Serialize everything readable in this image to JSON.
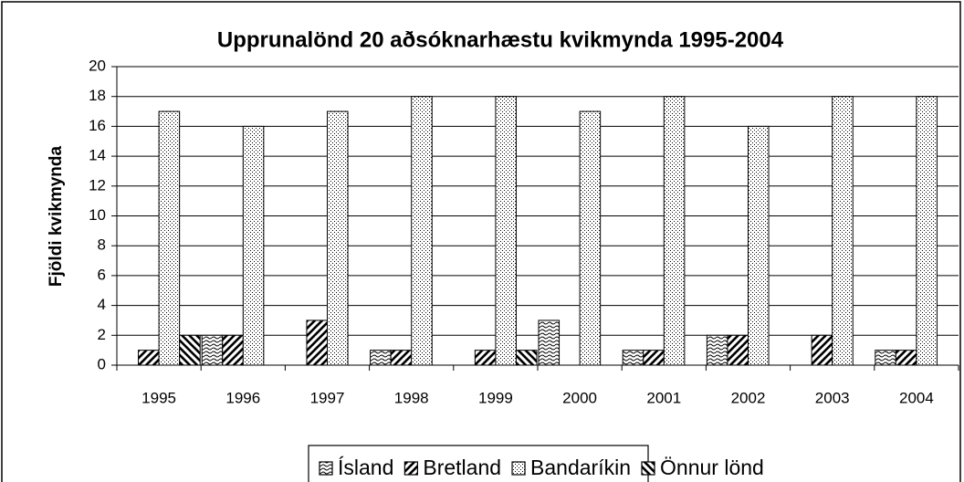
{
  "chart_data": {
    "type": "bar",
    "title": "Upprunalönd 20 aðsóknarhæstu kvikmynda 1995-2004",
    "y_label": "Fjöldi kvikmynda",
    "categories": [
      "1995",
      "1996",
      "1997",
      "1998",
      "1999",
      "2000",
      "2001",
      "2002",
      "2003",
      "2004"
    ],
    "series": [
      {
        "name": "Ísland",
        "color": "#000000",
        "pattern": "cross",
        "values": [
          0,
          2,
          0,
          1,
          0,
          3,
          1,
          2,
          0,
          1
        ]
      },
      {
        "name": "Bretland",
        "color": "#000000",
        "pattern": "forward",
        "values": [
          1,
          2,
          3,
          1,
          1,
          0,
          1,
          2,
          2,
          1
        ]
      },
      {
        "name": "Bandaríkin",
        "color": "#000000",
        "pattern": "dots",
        "values": [
          17,
          16,
          17,
          18,
          18,
          17,
          18,
          16,
          18,
          18
        ]
      },
      {
        "name": "Önnur lönd",
        "color": "#000000",
        "pattern": "backward",
        "values": [
          2,
          0,
          0,
          0,
          1,
          0,
          0,
          0,
          0,
          0
        ]
      }
    ],
    "ylim": [
      0,
      20
    ],
    "yticks": [
      0,
      2,
      4,
      6,
      8,
      10,
      12,
      14,
      16,
      18,
      20
    ],
    "grid": true,
    "legend": "bottom"
  }
}
